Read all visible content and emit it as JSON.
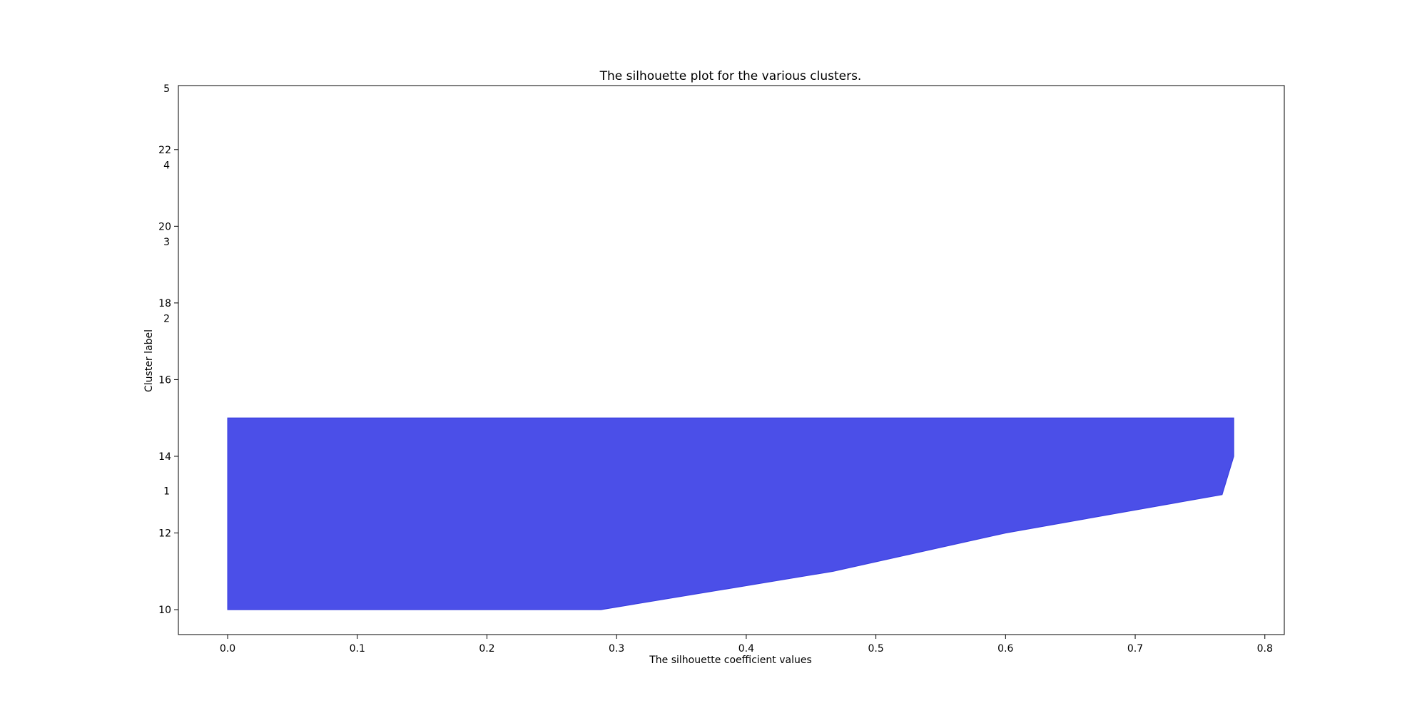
{
  "chart_data": {
    "type": "area",
    "title": "The silhouette plot for the various clusters.",
    "xlabel": "The silhouette coefficient values",
    "ylabel": "Cluster label",
    "xlim": [
      -0.038,
      0.815
    ],
    "ylim": [
      9.35,
      23.67
    ],
    "x_ticks": [
      {
        "value": 0.0,
        "label": "0.0"
      },
      {
        "value": 0.1,
        "label": "0.1"
      },
      {
        "value": 0.2,
        "label": "0.2"
      },
      {
        "value": 0.3,
        "label": "0.3"
      },
      {
        "value": 0.4,
        "label": "0.4"
      },
      {
        "value": 0.5,
        "label": "0.5"
      },
      {
        "value": 0.6,
        "label": "0.6"
      },
      {
        "value": 0.7,
        "label": "0.7"
      },
      {
        "value": 0.8,
        "label": "0.8"
      }
    ],
    "y_ticks": [
      {
        "value": 10,
        "label": "10"
      },
      {
        "value": 12,
        "label": "12"
      },
      {
        "value": 14,
        "label": "14"
      },
      {
        "value": 16,
        "label": "16"
      },
      {
        "value": 18,
        "label": "18"
      },
      {
        "value": 20,
        "label": "20"
      },
      {
        "value": 22,
        "label": "22"
      }
    ],
    "cluster_labels": [
      {
        "y": 13.1,
        "label": "1"
      },
      {
        "y": 17.6,
        "label": "2"
      },
      {
        "y": 19.6,
        "label": "3"
      },
      {
        "y": 21.6,
        "label": "4"
      },
      {
        "y": 23.6,
        "label": "5"
      }
    ],
    "series": [
      {
        "y": [
          10,
          11,
          12,
          13,
          14,
          15
        ],
        "values": [
          0.288,
          0.467,
          0.6,
          0.767,
          0.776,
          0.776
        ],
        "baseline": 0.0,
        "color": "#4b4fe8",
        "edge_color": "#3a3fe0"
      }
    ],
    "grid": false
  }
}
